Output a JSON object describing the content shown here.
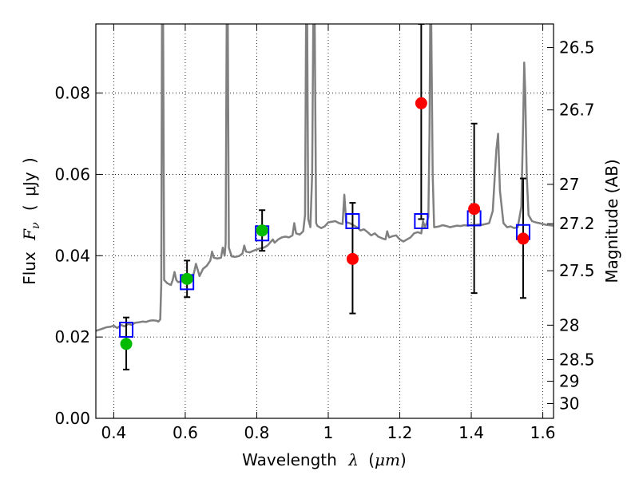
{
  "chart_data": {
    "type": "scatter",
    "title": "",
    "xlabel": {
      "prefix": "Wavelength",
      "symbol": "λ",
      "unit_open": "(",
      "unit": "μm",
      "unit_close": ")"
    },
    "ylabel": {
      "prefix": "Flux",
      "symbol": "F",
      "subscript": "ν",
      "unit_open": "(",
      "unit": "μJy",
      "unit_close": ")"
    },
    "ylabel_right": "Magnitude (AB)",
    "xlim": [
      0.35,
      1.63
    ],
    "ylim": [
      0.0,
      0.097
    ],
    "x_ticks": [
      {
        "value": 0.4,
        "label": "0.4"
      },
      {
        "value": 0.6,
        "label": "0.6"
      },
      {
        "value": 0.8,
        "label": "0.8"
      },
      {
        "value": 1.0,
        "label": "1"
      },
      {
        "value": 1.2,
        "label": "1.2"
      },
      {
        "value": 1.4,
        "label": "1.4"
      },
      {
        "value": 1.6,
        "label": "1.6"
      }
    ],
    "y_ticks": [
      {
        "value": 0.0,
        "label": "0.00"
      },
      {
        "value": 0.02,
        "label": "0.02"
      },
      {
        "value": 0.04,
        "label": "0.04"
      },
      {
        "value": 0.06,
        "label": "0.06"
      },
      {
        "value": 0.08,
        "label": "0.08"
      }
    ],
    "right_ticks": [
      {
        "value": 26.5,
        "label": "26.5"
      },
      {
        "value": 26.7,
        "label": "26.7"
      },
      {
        "value": 27.0,
        "label": "27"
      },
      {
        "value": 27.2,
        "label": "27.2"
      },
      {
        "value": 27.5,
        "label": "27.5"
      },
      {
        "value": 28.0,
        "label": "28"
      },
      {
        "value": 28.5,
        "label": "28.5"
      },
      {
        "value": 29.0,
        "label": "29"
      },
      {
        "value": 30.0,
        "label": "30"
      }
    ],
    "grid": true,
    "grid_style": "dotted",
    "colors": {
      "spectrum": "#808080",
      "model_box": "#0000ff",
      "green_obs": "#00bb00",
      "red_obs": "#ff0000",
      "errorbar": "#000000"
    },
    "spectrum": [
      [
        0.35,
        0.0215
      ],
      [
        0.36,
        0.0218
      ],
      [
        0.37,
        0.0221
      ],
      [
        0.38,
        0.0224
      ],
      [
        0.39,
        0.0225
      ],
      [
        0.4,
        0.0228
      ],
      [
        0.41,
        0.0222
      ],
      [
        0.42,
        0.023
      ],
      [
        0.43,
        0.0226
      ],
      [
        0.44,
        0.0232
      ],
      [
        0.45,
        0.023
      ],
      [
        0.46,
        0.0235
      ],
      [
        0.47,
        0.0236
      ],
      [
        0.48,
        0.0238
      ],
      [
        0.49,
        0.0237
      ],
      [
        0.5,
        0.024
      ],
      [
        0.51,
        0.0241
      ],
      [
        0.52,
        0.024
      ],
      [
        0.525,
        0.0238
      ],
      [
        0.53,
        0.0243
      ],
      [
        0.533,
        0.033
      ],
      [
        0.535,
        0.097
      ],
      [
        0.538,
        0.097
      ],
      [
        0.541,
        0.034
      ],
      [
        0.55,
        0.0332
      ],
      [
        0.56,
        0.0328
      ],
      [
        0.565,
        0.034
      ],
      [
        0.57,
        0.036
      ],
      [
        0.575,
        0.034
      ],
      [
        0.58,
        0.0335
      ],
      [
        0.59,
        0.0337
      ],
      [
        0.6,
        0.034
      ],
      [
        0.61,
        0.0342
      ],
      [
        0.62,
        0.0345
      ],
      [
        0.625,
        0.036
      ],
      [
        0.63,
        0.038
      ],
      [
        0.635,
        0.0365
      ],
      [
        0.64,
        0.035
      ],
      [
        0.65,
        0.0368
      ],
      [
        0.66,
        0.0375
      ],
      [
        0.67,
        0.0388
      ],
      [
        0.675,
        0.041
      ],
      [
        0.68,
        0.0395
      ],
      [
        0.69,
        0.0393
      ],
      [
        0.7,
        0.0395
      ],
      [
        0.705,
        0.042
      ],
      [
        0.71,
        0.04
      ],
      [
        0.713,
        0.043
      ],
      [
        0.716,
        0.097
      ],
      [
        0.719,
        0.097
      ],
      [
        0.722,
        0.042
      ],
      [
        0.73,
        0.0398
      ],
      [
        0.74,
        0.0397
      ],
      [
        0.75,
        0.0399
      ],
      [
        0.76,
        0.0405
      ],
      [
        0.765,
        0.0425
      ],
      [
        0.77,
        0.041
      ],
      [
        0.78,
        0.0408
      ],
      [
        0.79,
        0.0412
      ],
      [
        0.8,
        0.0415
      ],
      [
        0.81,
        0.0418
      ],
      [
        0.82,
        0.042
      ],
      [
        0.83,
        0.0425
      ],
      [
        0.84,
        0.0435
      ],
      [
        0.845,
        0.044
      ],
      [
        0.85,
        0.0432
      ],
      [
        0.86,
        0.044
      ],
      [
        0.87,
        0.0445
      ],
      [
        0.88,
        0.0447
      ],
      [
        0.89,
        0.0445
      ],
      [
        0.9,
        0.045
      ],
      [
        0.905,
        0.048
      ],
      [
        0.91,
        0.0455
      ],
      [
        0.92,
        0.0452
      ],
      [
        0.93,
        0.046
      ],
      [
        0.935,
        0.05
      ],
      [
        0.938,
        0.097
      ],
      [
        0.941,
        0.097
      ],
      [
        0.944,
        0.049
      ],
      [
        0.95,
        0.047
      ],
      [
        0.955,
        0.06
      ],
      [
        0.958,
        0.097
      ],
      [
        0.962,
        0.097
      ],
      [
        0.966,
        0.048
      ],
      [
        0.97,
        0.0473
      ],
      [
        0.98,
        0.0468
      ],
      [
        0.99,
        0.0472
      ],
      [
        1.0,
        0.0482
      ],
      [
        1.02,
        0.0485
      ],
      [
        1.03,
        0.048
      ],
      [
        1.04,
        0.0478
      ],
      [
        1.045,
        0.055
      ],
      [
        1.05,
        0.0482
      ],
      [
        1.06,
        0.048
      ],
      [
        1.07,
        0.0475
      ],
      [
        1.08,
        0.047
      ],
      [
        1.09,
        0.0462
      ],
      [
        1.1,
        0.0465
      ],
      [
        1.11,
        0.0458
      ],
      [
        1.12,
        0.045
      ],
      [
        1.13,
        0.0455
      ],
      [
        1.14,
        0.0447
      ],
      [
        1.15,
        0.0443
      ],
      [
        1.16,
        0.044
      ],
      [
        1.165,
        0.046
      ],
      [
        1.17,
        0.0445
      ],
      [
        1.18,
        0.0448
      ],
      [
        1.19,
        0.045
      ],
      [
        1.2,
        0.044
      ],
      [
        1.21,
        0.0435
      ],
      [
        1.22,
        0.044
      ],
      [
        1.23,
        0.0445
      ],
      [
        1.24,
        0.0455
      ],
      [
        1.25,
        0.0458
      ],
      [
        1.26,
        0.0455
      ],
      [
        1.265,
        0.0485
      ],
      [
        1.27,
        0.047
      ],
      [
        1.275,
        0.048
      ],
      [
        1.28,
        0.0495
      ],
      [
        1.283,
        0.07
      ],
      [
        1.285,
        0.097
      ],
      [
        1.288,
        0.097
      ],
      [
        1.292,
        0.06
      ],
      [
        1.296,
        0.047
      ],
      [
        1.31,
        0.0472
      ],
      [
        1.32,
        0.0475
      ],
      [
        1.33,
        0.0473
      ],
      [
        1.34,
        0.047
      ],
      [
        1.35,
        0.0472
      ],
      [
        1.36,
        0.0474
      ],
      [
        1.37,
        0.0473
      ],
      [
        1.38,
        0.0475
      ],
      [
        1.39,
        0.0474
      ],
      [
        1.4,
        0.0476
      ],
      [
        1.41,
        0.0475
      ],
      [
        1.42,
        0.0477
      ],
      [
        1.43,
        0.0476
      ],
      [
        1.44,
        0.0478
      ],
      [
        1.45,
        0.048
      ],
      [
        1.46,
        0.051
      ],
      [
        1.47,
        0.066
      ],
      [
        1.475,
        0.07
      ],
      [
        1.48,
        0.056
      ],
      [
        1.49,
        0.048
      ],
      [
        1.5,
        0.047
      ],
      [
        1.51,
        0.0472
      ],
      [
        1.52,
        0.0468
      ],
      [
        1.53,
        0.047
      ],
      [
        1.54,
        0.052
      ],
      [
        1.545,
        0.072
      ],
      [
        1.548,
        0.0875
      ],
      [
        1.551,
        0.08
      ],
      [
        1.555,
        0.06
      ],
      [
        1.56,
        0.05
      ],
      [
        1.57,
        0.0485
      ],
      [
        1.58,
        0.0482
      ],
      [
        1.59,
        0.048
      ],
      [
        1.6,
        0.0478
      ],
      [
        1.61,
        0.0476
      ],
      [
        1.62,
        0.0475
      ],
      [
        1.63,
        0.0474
      ]
    ],
    "model_points": [
      {
        "x": 0.435,
        "y": 0.0218
      },
      {
        "x": 0.605,
        "y": 0.0335
      },
      {
        "x": 0.815,
        "y": 0.0455
      },
      {
        "x": 1.068,
        "y": 0.0485
      },
      {
        "x": 1.26,
        "y": 0.0485
      },
      {
        "x": 1.408,
        "y": 0.0492
      },
      {
        "x": 1.545,
        "y": 0.0458
      }
    ],
    "observed_points": [
      {
        "x": 0.435,
        "y": 0.0183,
        "yerr_low": 0.012,
        "yerr_high": 0.0248,
        "color": "green"
      },
      {
        "x": 0.605,
        "y": 0.0343,
        "yerr_low": 0.0298,
        "yerr_high": 0.0388,
        "color": "green"
      },
      {
        "x": 0.815,
        "y": 0.0462,
        "yerr_low": 0.0412,
        "yerr_high": 0.0512,
        "color": "green"
      },
      {
        "x": 1.068,
        "y": 0.0392,
        "yerr_low": 0.0258,
        "yerr_high": 0.053,
        "color": "red"
      },
      {
        "x": 1.26,
        "y": 0.0775,
        "yerr_low": 0.049,
        "yerr_high": 0.097,
        "color": "red"
      },
      {
        "x": 1.408,
        "y": 0.0515,
        "yerr_low": 0.0308,
        "yerr_high": 0.0725,
        "color": "red"
      },
      {
        "x": 1.545,
        "y": 0.0442,
        "yerr_low": 0.0296,
        "yerr_high": 0.059,
        "color": "red"
      }
    ]
  }
}
